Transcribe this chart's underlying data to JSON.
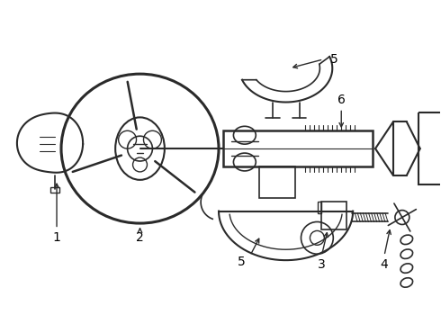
{
  "background_color": "#ffffff",
  "line_color": "#2a2a2a",
  "label_color": "#000000",
  "label_fontsize": 10,
  "figsize": [
    4.9,
    3.6
  ],
  "dpi": 100,
  "xlim": [
    0,
    490
  ],
  "ylim": [
    0,
    360
  ]
}
